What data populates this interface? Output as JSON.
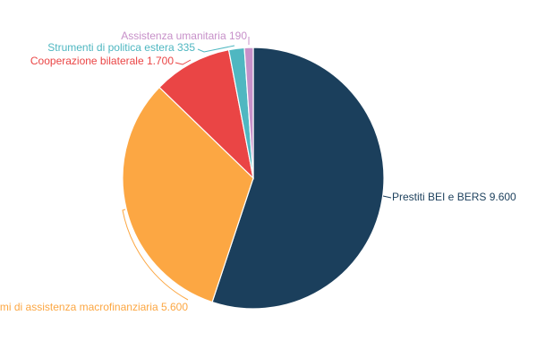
{
  "chart_data": {
    "type": "pie",
    "title": "",
    "start": "12 o'clock, clockwise",
    "slices": [
      {
        "label": "Prestiti BEI e BERS",
        "value": 9600,
        "display": "9.600",
        "color": "#1b3f5c"
      },
      {
        "label": "Programmi di assistenza macrofinanziaria",
        "value": 5600,
        "display": "5.600",
        "color": "#fca743"
      },
      {
        "label": "Cooperazione bilaterale",
        "value": 1700,
        "display": "1.700",
        "color": "#ea4545"
      },
      {
        "label": "Strumenti di politica estera",
        "value": 335,
        "display": "335",
        "color": "#4fb7c1"
      },
      {
        "label": "Assistenza umanitaria",
        "value": 190,
        "display": "190",
        "color": "#c790c9"
      }
    ]
  }
}
